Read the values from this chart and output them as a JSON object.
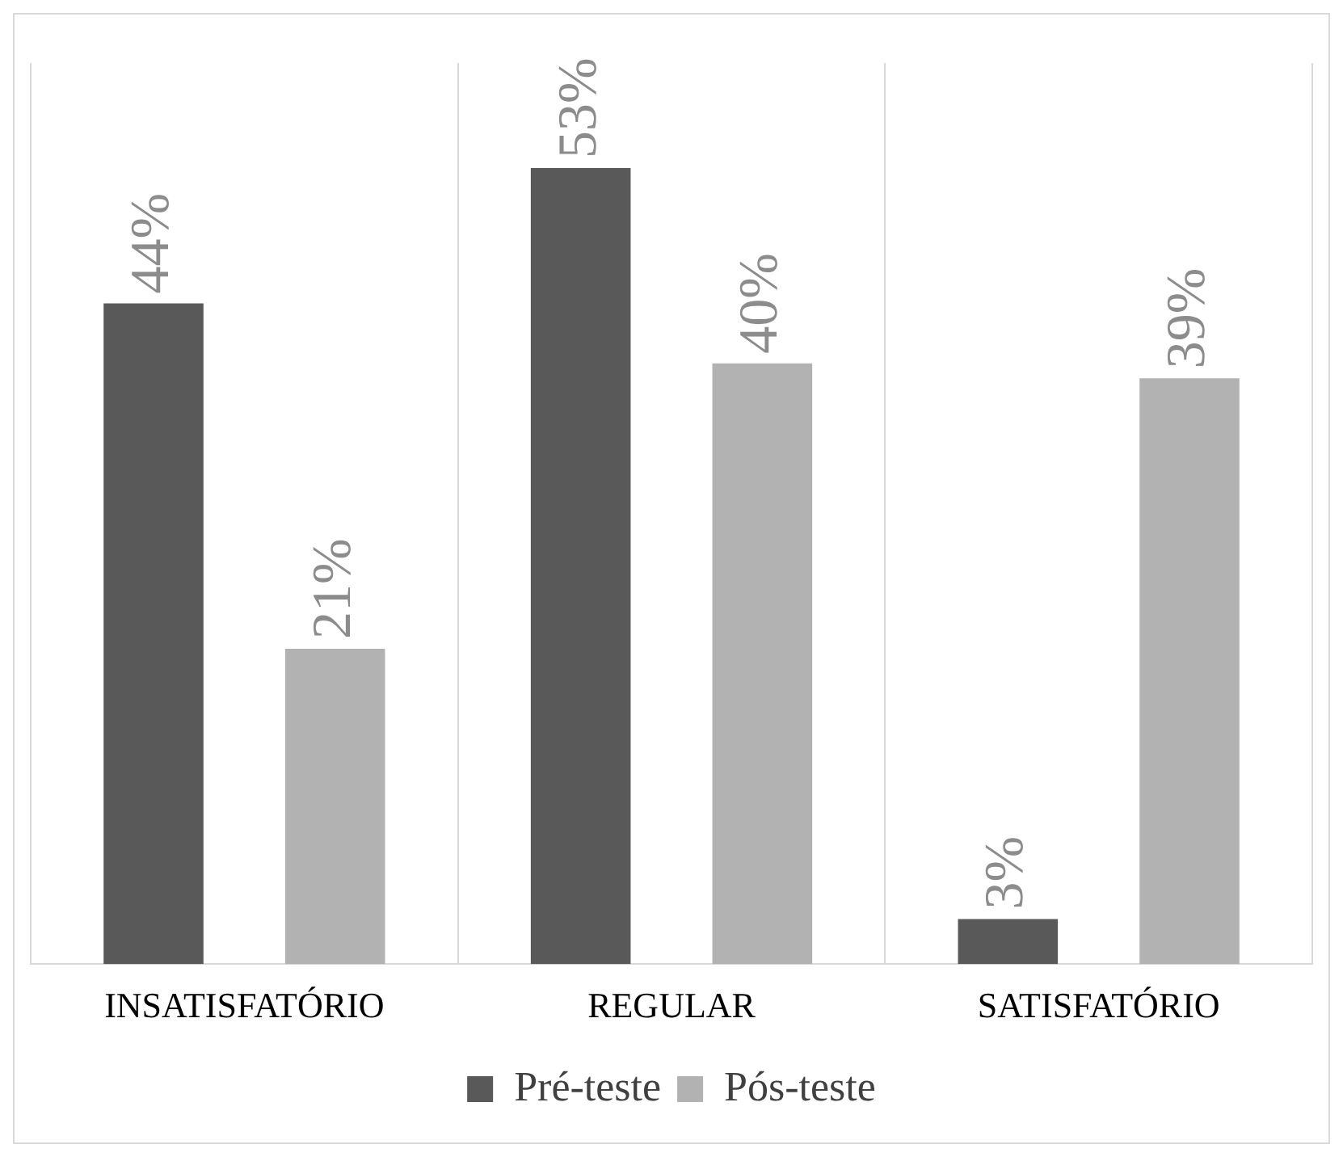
{
  "chart_data": {
    "type": "bar",
    "categories": [
      "INSATISFATÓRIO",
      "REGULAR",
      "SATISFATÓRIO"
    ],
    "series": [
      {
        "name": "Pré-teste",
        "color": "#595959",
        "values": [
          44,
          53,
          3
        ],
        "value_labels": [
          "44%",
          "53%",
          "3%"
        ]
      },
      {
        "name": "Pós-teste",
        "color": "#b2b2b2",
        "values": [
          21,
          40,
          39
        ],
        "value_labels": [
          "21%",
          "40%",
          "39%"
        ]
      }
    ],
    "tick_labels": "x",
    "grid": "x",
    "legend": "bottom"
  }
}
